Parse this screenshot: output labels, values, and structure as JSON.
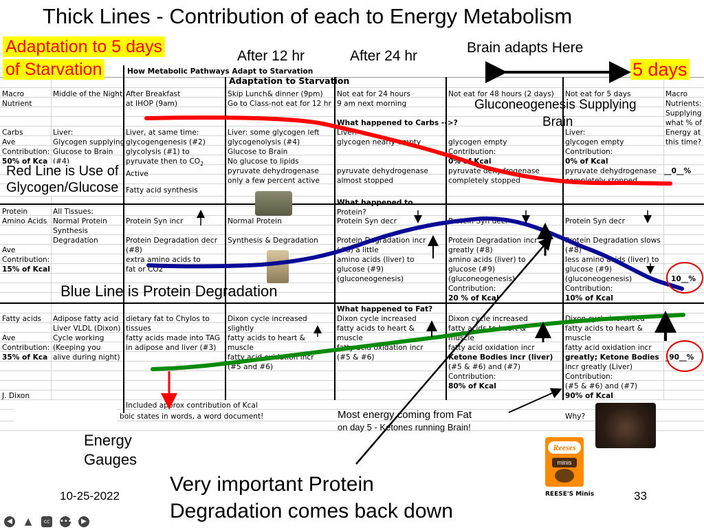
{
  "slide": {
    "title": "Thick Lines - Contribution of each to Energy Metabolism",
    "adaptation_line1": "Adaptation to 5 days",
    "adaptation_line2": "of Starvation",
    "after12": "After 12 hr",
    "after24": "After 24 hr",
    "brain_adapts": "Brain adapts Here",
    "five_days": "5 days",
    "gluco_supply": "Gluconeogenesis Supplying",
    "gluco_brain": "Brain",
    "red_line_1": "Red Line is Use of",
    "red_line_2": "Glycogen/Glucose",
    "blue_line": "Blue Line is Protein Degradation",
    "most_energy_1": "Most energy coming from Fat",
    "most_energy_2": "on day 5 - Ketones running Brain!",
    "energy_gauges_1": "Energy",
    "energy_gauges_2": "Gauges",
    "important_1": "Very important Protein",
    "important_2": "Degradation comes back down",
    "date": "10-25-2022",
    "page_number": "33",
    "reeses_label": "REESE'S Minis",
    "reeses_brand": "Reeses",
    "reeses_minis": "minis",
    "why": "Why?",
    "colors": {
      "red": "#ff0000",
      "blue": "#0a0a96",
      "green": "#0a8a0a",
      "yellow": "#ffff00"
    }
  },
  "sheet": {
    "heading": "How Metabolic Pathways Adapt to Starvation",
    "subheading": "Adaptation to Starvation",
    "headers": [
      [
        "Macro",
        "Nutrient"
      ],
      [
        "Middle of the Night",
        ""
      ],
      [
        "After Breakfast",
        "at IHOP (9am)"
      ],
      [
        "Skip Lunch& dinner (9pm)",
        "Go to Class-not eat for 12 hr"
      ],
      [
        "Not eat for 24 hours",
        "9 am next morning"
      ],
      [
        "Not eat for 48 hours (2 days)",
        ""
      ],
      [
        "Not eat for 5 days",
        ""
      ],
      [
        "Macro",
        "Nutrients:",
        "Supplying",
        "what % of",
        "Energy at",
        "this time?"
      ]
    ],
    "carbs": {
      "happened": "What happened to Carbs -->?",
      "col0": [
        "Carbs",
        "Ave",
        "Contribution:",
        "50% of Kca"
      ],
      "col1": [
        "Liver:",
        "Glycogen supplying",
        "Glucose to Brain",
        "(#4)"
      ],
      "col2": [
        "Liver, at same time:",
        "glycogengenesis (#2)",
        "glycolysis (#1) to",
        "pyruvate then to CO",
        "Active",
        "Fatty acid synthesis"
      ],
      "col3": [
        "Liver: some glycogen left",
        "glycogenolysis (#4)",
        "Glucose to Brain",
        "No glucose to lipids",
        "pyruvate dehydrogenase",
        "only a few percent active"
      ],
      "col4": [
        "Liver:",
        "glycogen nearly empty",
        "pyruvate dehydrogenase",
        "almost stopped"
      ],
      "col5": [
        "glycogen empty",
        "Contribution:",
        "0% of Kcal",
        "pyruvate dehydrogenase",
        "completely stopped"
      ],
      "col6": [
        "Liver:",
        "glycogen empty",
        "Contribution:",
        "0% of Kcal",
        "pyruvate dehydrogenase",
        "completely stopped"
      ],
      "gauge": "__0__%"
    },
    "protein": {
      "happened": "What happened to",
      "happened2": "Protein?",
      "col0": [
        "Protein",
        "Amino Acids",
        "",
        "",
        "Ave",
        "Contribution:",
        "15% of Kcal"
      ],
      "col1": [
        "All Tissues:",
        "Normal Protein",
        "Synthesis",
        "Degradation"
      ],
      "col2": [
        "Protein Syn  incr",
        "Protein Degradation decr",
        "(#8)",
        "extra amino acids to",
        "fat or CO2"
      ],
      "col3": [
        "Normal Protein",
        "Synthesis & Degradation"
      ],
      "col4": [
        "Protein Syn decr",
        "Protein Degradation incr",
        "(#8) a little",
        "amino acids (liver) to",
        "glucose (#9)",
        "(gluconeogenesis)"
      ],
      "col5": [
        "Protein Syn decr",
        "Protein Degradation incr",
        "greatly (#8)",
        "amino acids (liver) to",
        "glucose (#9)",
        "(gluconeogenesis)",
        "Contribution:",
        "20 % of Kcal"
      ],
      "col6": [
        "Protein Syn decr",
        "Protein Degradation slows",
        "(#8)",
        "less amino acids (liver) to",
        "glucose (#9)",
        "(gluconeogenesis)",
        "Contribution:",
        "10% of Kcal"
      ],
      "gauge": "10__%"
    },
    "fat": {
      "happened": "What happened to Fat?",
      "col0": [
        "Fatty acids",
        "",
        "Ave",
        "Contribution:",
        "35% of Kca"
      ],
      "col1": [
        "Adipose fatty acid",
        "Liver VLDL (Dixon)",
        "Cycle working",
        "(Keeping you",
        "alive during night)"
      ],
      "col2": [
        "dietary fat to Chylos to",
        "tissues",
        "fatty acids made into TAG",
        "in adipose and liver (#3)"
      ],
      "col3": [
        "Dixon cycle increased",
        "slightly",
        "fatty acids to heart &",
        "muscle",
        "fatty acid oxidation incr",
        "(#5 and #6)"
      ],
      "col4": [
        "Dixon cycle increased",
        "fatty acids to heart &",
        "muscle",
        "fatty acid oxidation incr",
        "(#5 & #6)"
      ],
      "col5": [
        "Dixon cycle increased",
        "fatty acids to heart &",
        "muscle",
        "fatty acid oxidation incr",
        "Ketone Bodies incr (liver)",
        "(#5 & #6) and (#7)",
        "Contribution:",
        "80% of Kcal"
      ],
      "col6": [
        "Dixon cycle increased",
        "fatty acids to heart &",
        "muscle",
        "fatty acid oxidation incr",
        "greatly; Ketone Bodies",
        "incr greatly (Liver)",
        "Contribution:",
        "(#5 & #6) and (#7)",
        "90% of Kcal"
      ],
      "gauge": "_90__%"
    },
    "author": "J. Dixon",
    "footnote1": "Included approx contribution of Kcal",
    "footnote2": "boic states in words, a word document!"
  }
}
